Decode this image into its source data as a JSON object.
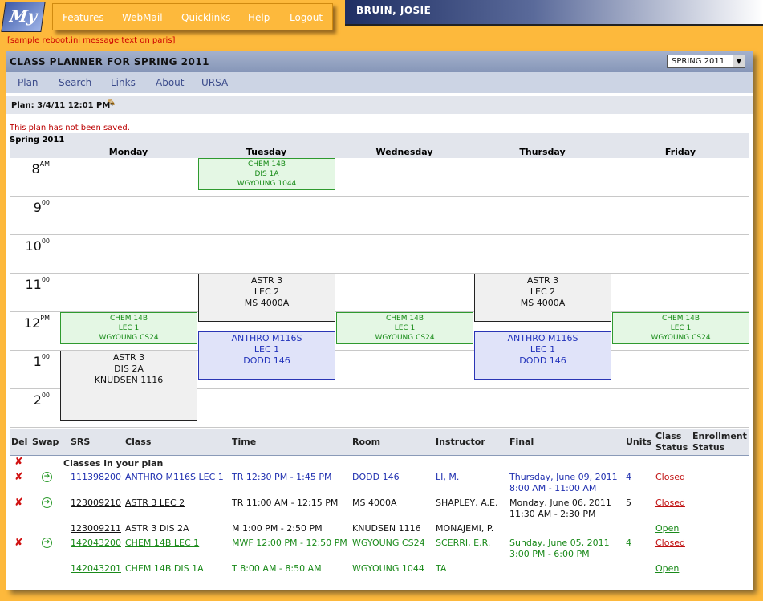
{
  "logo": "My",
  "top_nav": [
    "Features",
    "WebMail",
    "Quicklinks",
    "Help",
    "Logout"
  ],
  "user_name": "BRUIN, JOSIE",
  "system_message": "[sample reboot.ini message text on paris]",
  "planner": {
    "title": "CLASS PLANNER FOR SPRING 2011",
    "term_select": "SPRING 2011",
    "nav": [
      "Plan",
      "Search",
      "Links",
      "About",
      "URSA"
    ],
    "plan_label": "Plan: 3/4/11 12:01 PM*",
    "save_notice": "This plan has not been saved."
  },
  "calendar": {
    "term": "Spring 2011",
    "days": [
      "Monday",
      "Tuesday",
      "Wednesday",
      "Thursday",
      "Friday"
    ],
    "hours": [
      {
        "hour": "8",
        "suffix": "AM"
      },
      {
        "hour": "9",
        "suffix": "00"
      },
      {
        "hour": "10",
        "suffix": "00"
      },
      {
        "hour": "11",
        "suffix": "00"
      },
      {
        "hour": "12",
        "suffix": "PM"
      },
      {
        "hour": "1",
        "suffix": "00"
      },
      {
        "hour": "2",
        "suffix": "00"
      }
    ],
    "events": [
      {
        "lines": [
          "CHEM 14B",
          "DIS 1A",
          "WGYOUNG 1044"
        ]
      },
      {
        "lines": [
          "ASTR 3",
          "LEC 2",
          "MS 4000A"
        ]
      },
      {
        "lines": [
          "ASTR 3",
          "LEC 2",
          "MS 4000A"
        ]
      },
      {
        "lines": [
          "CHEM 14B",
          "LEC 1",
          "WGYOUNG CS24"
        ]
      },
      {
        "lines": [
          "CHEM 14B",
          "LEC 1",
          "WGYOUNG CS24"
        ]
      },
      {
        "lines": [
          "CHEM 14B",
          "LEC 1",
          "WGYOUNG CS24"
        ]
      },
      {
        "lines": [
          "ANTHRO M116S",
          "LEC 1",
          "DODD 146"
        ]
      },
      {
        "lines": [
          "ANTHRO M116S",
          "LEC 1",
          "DODD 146"
        ]
      },
      {
        "lines": [
          "ASTR 3",
          "DIS 2A",
          "KNUDSEN 1116"
        ]
      }
    ]
  },
  "table": {
    "headers": [
      "Del",
      "Swap",
      "SRS",
      "Class",
      "Time",
      "Room",
      "Instructor",
      "Final",
      "Units",
      "Class Status",
      "Enrollment Status"
    ],
    "section": "Classes in your plan",
    "rows": [
      {
        "srs": "111398200",
        "class": "ANTHRO M116S LEC 1",
        "time": "TR 12:30 PM - 1:45 PM",
        "room": "DODD 146",
        "instructor": "LI, M.",
        "final": [
          "Thursday, June 09, 2011",
          "8:00 AM - 11:00 AM"
        ],
        "units": 4,
        "status": "Closed"
      },
      {
        "srs": "123009210",
        "class": "ASTR 3 LEC 2",
        "time": "TR 11:00 AM - 12:15 PM",
        "room": "MS 4000A",
        "instructor": "SHAPLEY, A.E.",
        "final": [
          "Monday, June 06, 2011",
          "11:30 AM - 2:30 PM"
        ],
        "units": 5,
        "status": "Closed"
      },
      {
        "srs": "123009211",
        "class": "ASTR 3 DIS 2A",
        "time": "M 1:00 PM - 2:50 PM",
        "room": "KNUDSEN 1116",
        "instructor": "MONAJEMI, P.",
        "status": "Open"
      },
      {
        "srs": "142043200",
        "class": "CHEM 14B LEC 1",
        "time": "MWF 12:00 PM - 12:50 PM",
        "room": "WGYOUNG CS24",
        "instructor": "SCERRI, E.R.",
        "final": [
          "Sunday, June 05, 2011",
          "3:00 PM - 6:00 PM"
        ],
        "units": 4,
        "status": "Closed"
      },
      {
        "srs": "142043201",
        "class": "CHEM 14B DIS 1A",
        "time": "T 8:00 AM - 8:50 AM",
        "room": "WGYOUNG 1044",
        "instructor": "TA",
        "status": "Open"
      }
    ]
  }
}
